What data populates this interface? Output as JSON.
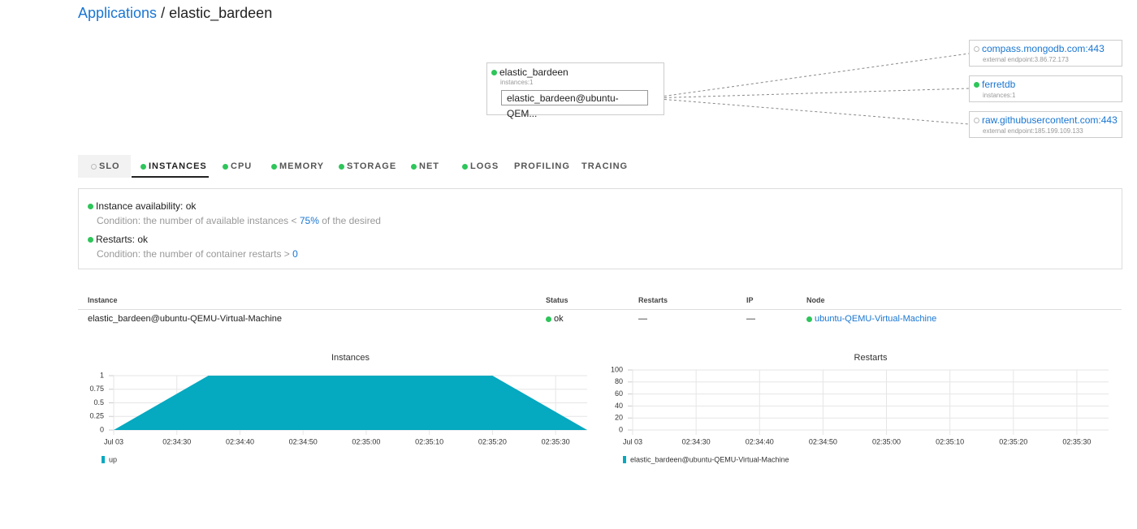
{
  "breadcrumb": {
    "link": "Applications",
    "separator": "/",
    "current": "elastic_bardeen"
  },
  "topology": {
    "app": {
      "name": "elastic_bardeen",
      "detail": "instances:1",
      "instance": "elastic_bardeen@ubuntu-QEM..."
    },
    "nodes": [
      {
        "name": "compass.mongodb.com:443",
        "detail": "external endpoint:3.86.72.173"
      },
      {
        "name": "ferretdb",
        "detail": "instances:1"
      },
      {
        "name": "raw.githubusercontent.com:443",
        "detail": "external endpoint:185.199.109.133"
      }
    ]
  },
  "tabs": [
    "SLO",
    "INSTANCES",
    "CPU",
    "MEMORY",
    "STORAGE",
    "NET",
    "LOGS",
    "PROFILING",
    "TRACING"
  ],
  "slo": [
    {
      "title": "Instance availability: ok",
      "condition": "Condition: the number of available instances <",
      "threshold": "75%",
      "suffix": "of the desired"
    },
    {
      "title": "Restarts: ok",
      "condition": "Condition: the number of container restarts >",
      "threshold": "0"
    }
  ],
  "table": {
    "headers": [
      "Instance",
      "Status",
      "Restarts",
      "IP",
      "Node"
    ],
    "rows": [
      [
        "elastic_bardeen@ubuntu-QEMU-Virtual-Machine",
        "ok",
        "—",
        "—",
        "ubuntu-QEMU-Virtual-Machine"
      ]
    ]
  },
  "chart_data": [
    {
      "type": "area",
      "title": "Instances",
      "x": [
        "02:34:20",
        "02:34:35",
        "02:35:20",
        "02:35:35"
      ],
      "series": [
        {
          "name": "up",
          "color": "#05a9c0",
          "values": [
            0,
            1,
            1,
            0
          ]
        }
      ],
      "xlim": [
        "02:34:20",
        "02:35:35"
      ],
      "xticks": [
        {
          "value": "02:34:20",
          "label": "Jul 03"
        },
        "02:34:30",
        "02:34:40",
        "02:34:50",
        "02:35:00",
        "02:35:10",
        "02:35:20",
        "02:35:30"
      ],
      "ylim": [
        0,
        1
      ],
      "yticks": [
        0,
        0.25,
        0.5,
        0.75,
        1
      ],
      "grid": true
    },
    {
      "type": "area",
      "title": "Restarts",
      "x": [],
      "series": [
        {
          "name": "elastic_bardeen@ubuntu-QEMU-Virtual-Machine",
          "color": "#05a9c0",
          "values": []
        }
      ],
      "xlim": [
        "02:34:20",
        "02:35:35"
      ],
      "xticks": [
        {
          "value": "02:34:20",
          "label": "Jul 03"
        },
        "02:34:30",
        "02:34:40",
        "02:34:50",
        "02:35:00",
        "02:35:10",
        "02:35:20",
        "02:35:30"
      ],
      "ylim": [
        0,
        100
      ],
      "yticks": [
        0,
        20,
        40,
        60,
        80,
        100
      ],
      "grid": true
    }
  ]
}
